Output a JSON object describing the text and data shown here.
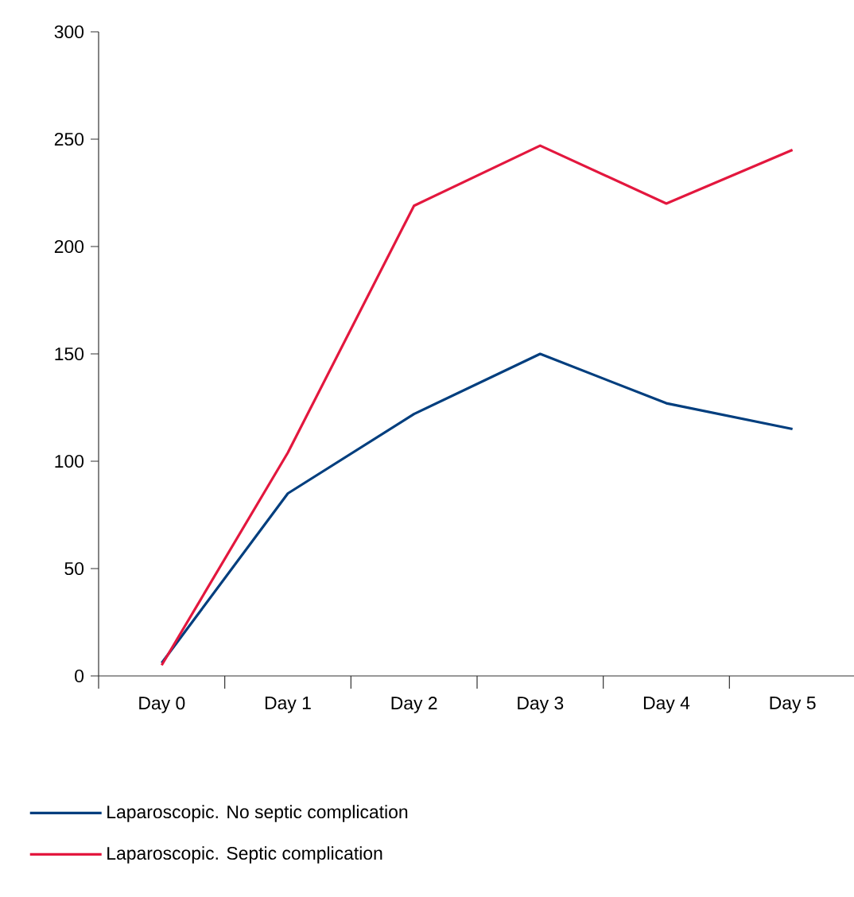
{
  "chart_data": {
    "type": "line",
    "categories": [
      "Day 0",
      "Day 1",
      "Day 2",
      "Day 3",
      "Day 4",
      "Day 5"
    ],
    "series": [
      {
        "name": "Laparoscopic. No septic complication",
        "color": "#003e7e",
        "values": [
          6,
          85,
          122,
          150,
          127,
          115
        ]
      },
      {
        "name": "Laparoscopic. Septic complication",
        "color": "#e3173e",
        "values": [
          5,
          104,
          219,
          247,
          220,
          245
        ]
      }
    ],
    "ylim": [
      0,
      300
    ],
    "yticks": [
      0,
      50,
      100,
      150,
      200,
      250,
      300
    ],
    "legend": "bottom",
    "marker": "none"
  }
}
